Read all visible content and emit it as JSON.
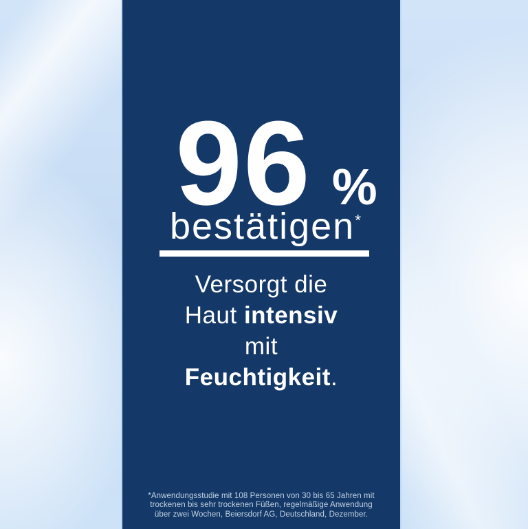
{
  "ad": {
    "headline": {
      "value": "96",
      "unit": "%"
    },
    "subheadline": {
      "text": "bestätigen",
      "footnote_marker": "*"
    },
    "claim": {
      "lines": [
        {
          "segments": [
            {
              "text": "Versorgt die",
              "bold": false
            }
          ]
        },
        {
          "segments": [
            {
              "text": "Haut ",
              "bold": false
            },
            {
              "text": "intensiv",
              "bold": true
            }
          ]
        },
        {
          "segments": [
            {
              "text": "mit",
              "bold": false
            }
          ]
        },
        {
          "segments": [
            {
              "text": "Feuchtigkeit",
              "bold": true
            },
            {
              "text": ".",
              "bold": false
            }
          ]
        }
      ]
    },
    "footnote": {
      "lines": [
        "*Anwendungsstudie mit 108 Personen von 30 bis 65 Jahren mit",
        "trockenen bis sehr trockenen Füßen, regelmäßige Anwendung",
        "über zwei Wochen, Beiersdorf AG, Deutschland, Dezember."
      ]
    }
  },
  "colors": {
    "panel_navy": "#143968",
    "text_white": "#ffffff",
    "footnote_muted": "#c3d2e4",
    "sky_light_blue": "#c9def5"
  }
}
